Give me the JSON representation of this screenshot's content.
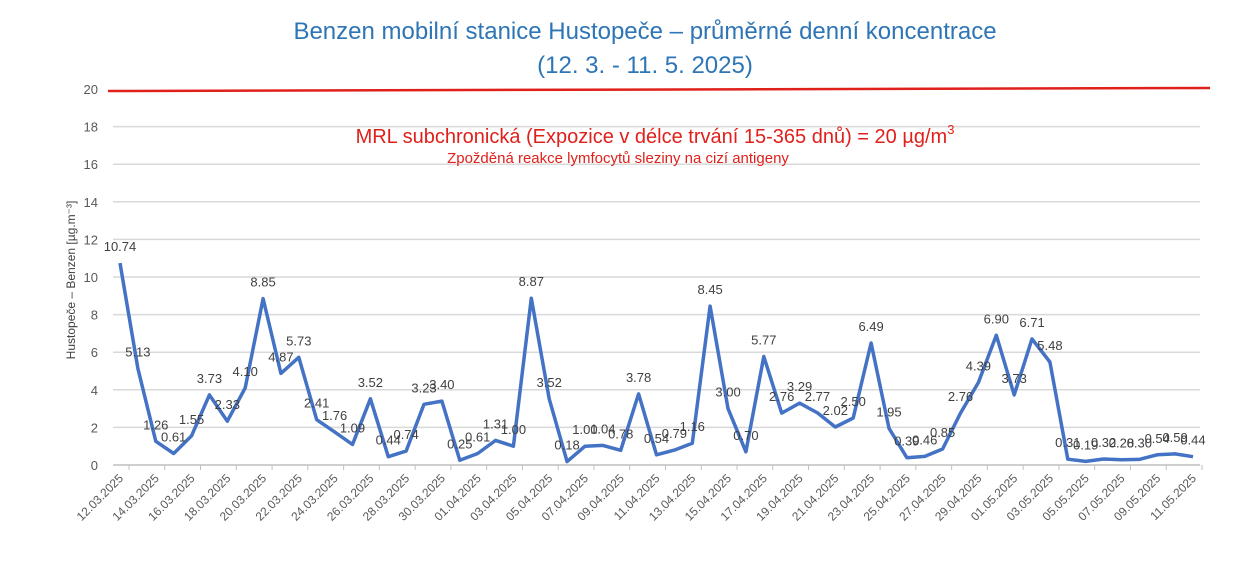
{
  "chart_data": {
    "type": "line",
    "title": "Benzen mobilní stanice Hustopeče – průměrné denní koncentrace",
    "subtitle": "(12. 3. - 11. 5. 2025)",
    "ylabel": "Hustopeče – Benzen  [µg.m⁻³]",
    "xlabel": "",
    "ylim": [
      0,
      20
    ],
    "yticks": [
      0,
      2,
      4,
      6,
      8,
      10,
      12,
      14,
      16,
      18,
      20
    ],
    "grid": true,
    "line_color": "#4472c4",
    "threshold": {
      "value": 20,
      "color": "#e0201b",
      "label": "MRL subchronická (Expozice v délce trvání 15-365 dnů) = 20 µg/m",
      "label_sup": "3",
      "note": "Zpožděná reakce lymfocytů sleziny na cizí antigeny"
    },
    "x": [
      "12.03.2025",
      "13.03.2025",
      "14.03.2025",
      "15.03.2025",
      "16.03.2025",
      "17.03.2025",
      "18.03.2025",
      "19.03.2025",
      "20.03.2025",
      "21.03.2025",
      "22.03.2025",
      "23.03.2025",
      "24.03.2025",
      "25.03.2025",
      "26.03.2025",
      "27.03.2025",
      "28.03.2025",
      "29.03.2025",
      "30.03.2025",
      "31.03.2025",
      "01.04.2025",
      "02.04.2025",
      "03.04.2025",
      "04.04.2025",
      "05.04.2025",
      "06.04.2025",
      "07.04.2025",
      "08.04.2025",
      "09.04.2025",
      "10.04.2025",
      "11.04.2025",
      "12.04.2025",
      "13.04.2025",
      "14.04.2025",
      "15.04.2025",
      "16.04.2025",
      "17.04.2025",
      "18.04.2025",
      "19.04.2025",
      "20.04.2025",
      "21.04.2025",
      "22.04.2025",
      "23.04.2025",
      "24.04.2025",
      "25.04.2025",
      "26.04.2025",
      "27.04.2025",
      "28.04.2025",
      "29.04.2025",
      "30.04.2025",
      "01.05.2025",
      "02.05.2025",
      "03.05.2025",
      "04.05.2025",
      "05.05.2025",
      "06.05.2025",
      "07.05.2025",
      "08.05.2025",
      "09.05.2025",
      "10.05.2025",
      "11.05.2025"
    ],
    "values": [
      10.74,
      5.13,
      1.26,
      0.61,
      1.55,
      3.73,
      2.33,
      4.1,
      8.85,
      4.87,
      5.73,
      2.41,
      1.76,
      1.09,
      3.52,
      0.44,
      0.74,
      3.23,
      3.4,
      0.25,
      0.61,
      1.31,
      1.0,
      8.87,
      3.52,
      0.18,
      1.0,
      1.04,
      0.78,
      3.78,
      0.54,
      0.79,
      1.16,
      8.45,
      3.0,
      0.7,
      5.77,
      2.76,
      3.29,
      2.77,
      2.02,
      2.5,
      6.49,
      1.95,
      0.39,
      0.46,
      0.85,
      2.76,
      4.39,
      6.9,
      3.73,
      6.71,
      5.48,
      0.31,
      0.19,
      0.32,
      0.28,
      0.3,
      0.54,
      0.59,
      0.44
    ]
  }
}
